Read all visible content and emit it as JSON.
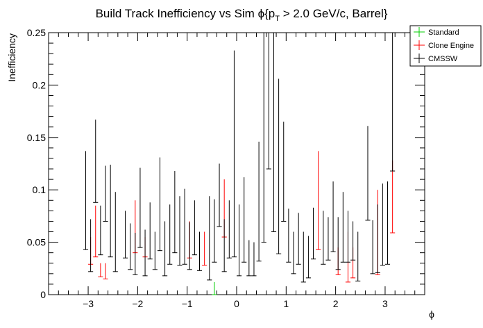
{
  "chart_data": {
    "type": "scatter",
    "title_main": "Build Track Inefficiency vs Sim ϕ{p",
    "title_sub": "T",
    "title_rest": " > 2.0 GeV/c, Barrel}",
    "xlabel": "ϕ",
    "ylabel": "Inefficiency",
    "xlim": [
      -3.8,
      3.8
    ],
    "ylim": [
      0,
      0.25
    ],
    "xticks": [
      -3,
      -2,
      -1,
      0,
      1,
      2,
      3
    ],
    "xtick_labels": [
      "−3",
      "−2",
      "−1",
      "0",
      "1",
      "2",
      "3"
    ],
    "yticks": [
      0,
      0.05,
      0.1,
      0.15,
      0.2,
      0.25
    ],
    "ytick_labels": [
      "0",
      "0.05",
      "0.1",
      "0.15",
      "0.2",
      "0.25"
    ],
    "grid": false,
    "legend_position": "top-right",
    "bin_half_width": 0.05,
    "series": [
      {
        "name": "Standard",
        "color": "#00cc00",
        "points": [
          [
            -0.45,
            0,
            0.012
          ]
        ]
      },
      {
        "name": "Clone Engine",
        "color": "#ff0000",
        "points": [
          [
            -2.95,
            0.029,
            0.055
          ],
          [
            -2.85,
            0.036,
            0.085
          ],
          [
            -2.75,
            0.017,
            0.03
          ],
          [
            -2.65,
            0.015,
            0.03
          ],
          [
            -2.05,
            0.04,
            0.09
          ],
          [
            -1.85,
            0.036,
            0.055
          ],
          [
            -0.95,
            0.035,
            0.07
          ],
          [
            -0.65,
            0.028,
            0.06
          ],
          [
            -0.25,
            0.055,
            0.11
          ],
          [
            1.65,
            0.043,
            0.137
          ],
          [
            2.05,
            0.019,
            0.045
          ],
          [
            2.25,
            0.012,
            0.06
          ],
          [
            2.35,
            0.016,
            0.045
          ],
          [
            2.85,
            0.019,
            0.1
          ],
          [
            3.15,
            0.059,
            0.128
          ]
        ]
      },
      {
        "name": "CMSSW",
        "color": "#000000",
        "points": [
          [
            -3.05,
            0.043,
            0.137
          ],
          [
            -2.95,
            0.022,
            0.072
          ],
          [
            -2.85,
            0.088,
            0.167
          ],
          [
            -2.75,
            0.038,
            0.085
          ],
          [
            -2.65,
            0.07,
            0.123
          ],
          [
            -2.55,
            0.036,
            0.124
          ],
          [
            -2.45,
            0.022,
            0.098
          ],
          [
            -2.25,
            0.035,
            0.08
          ],
          [
            -2.15,
            0.024,
            0.068
          ],
          [
            -2.05,
            0.019,
            0.059
          ],
          [
            -1.95,
            0.045,
            0.121
          ],
          [
            -1.85,
            0.018,
            0.062
          ],
          [
            -1.75,
            0.034,
            0.088
          ],
          [
            -1.65,
            0.024,
            0.06
          ],
          [
            -1.55,
            0.042,
            0.131
          ],
          [
            -1.45,
            0.018,
            0.07
          ],
          [
            -1.35,
            0.029,
            0.086
          ],
          [
            -1.25,
            0.04,
            0.118
          ],
          [
            -1.15,
            0.028,
            0.094
          ],
          [
            -1.05,
            0.029,
            0.101
          ],
          [
            -0.95,
            0.024,
            0.069
          ],
          [
            -0.85,
            0.038,
            0.09
          ],
          [
            -0.75,
            0.023,
            0.06
          ],
          [
            -0.55,
            0.014,
            0.094
          ],
          [
            -0.45,
            0.031,
            0.091
          ],
          [
            -0.35,
            0.065,
            0.125
          ],
          [
            -0.25,
            0.022,
            0.072
          ],
          [
            -0.15,
            0.035,
            0.09
          ],
          [
            -0.05,
            0.036,
            0.233
          ],
          [
            0.05,
            0.018,
            0.086
          ],
          [
            0.15,
            0.031,
            0.112
          ],
          [
            0.25,
            0.018,
            0.052
          ],
          [
            0.35,
            0.018,
            0.05
          ],
          [
            0.45,
            0.032,
            0.146
          ],
          [
            0.55,
            0.05,
            0.25
          ],
          [
            0.65,
            0.12,
            0.25
          ],
          [
            0.75,
            0.06,
            0.25
          ],
          [
            0.85,
            0.039,
            0.206
          ],
          [
            0.95,
            0.07,
            0.165
          ],
          [
            1.05,
            0.031,
            0.082
          ],
          [
            1.15,
            0.02,
            0.06
          ],
          [
            1.25,
            0.029,
            0.078
          ],
          [
            1.35,
            0.012,
            0.06
          ],
          [
            1.45,
            0.016,
            0.056
          ],
          [
            1.55,
            0.034,
            0.083
          ],
          [
            1.75,
            0.029,
            0.08
          ],
          [
            1.85,
            0.033,
            0.074
          ],
          [
            1.95,
            0.041,
            0.108
          ],
          [
            2.05,
            0.024,
            0.074
          ],
          [
            2.15,
            0.031,
            0.098
          ],
          [
            2.25,
            0.031,
            0.08
          ],
          [
            2.35,
            0.033,
            0.07
          ],
          [
            2.45,
            0.013,
            0.06
          ],
          [
            2.65,
            0.071,
            0.161
          ],
          [
            2.75,
            0.02,
            0.071
          ],
          [
            2.85,
            0.021,
            0.086
          ],
          [
            2.95,
            0.028,
            0.106
          ],
          [
            3.05,
            0.029,
            0.108
          ],
          [
            3.15,
            0.118,
            0.25
          ]
        ]
      }
    ]
  }
}
